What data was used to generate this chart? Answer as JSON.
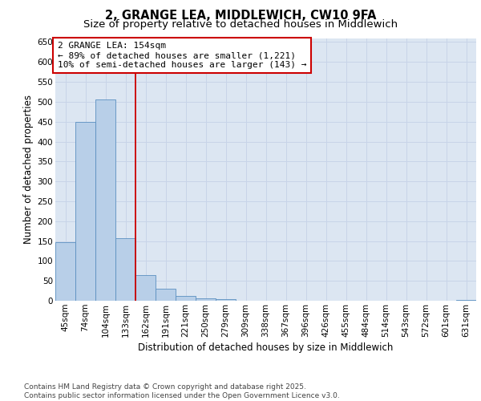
{
  "title_line1": "2, GRANGE LEA, MIDDLEWICH, CW10 9FA",
  "title_line2": "Size of property relative to detached houses in Middlewich",
  "xlabel": "Distribution of detached houses by size in Middlewich",
  "ylabel": "Number of detached properties",
  "categories": [
    "45sqm",
    "74sqm",
    "104sqm",
    "133sqm",
    "162sqm",
    "191sqm",
    "221sqm",
    "250sqm",
    "279sqm",
    "309sqm",
    "338sqm",
    "367sqm",
    "396sqm",
    "426sqm",
    "455sqm",
    "484sqm",
    "514sqm",
    "543sqm",
    "572sqm",
    "601sqm",
    "631sqm"
  ],
  "values": [
    148,
    450,
    505,
    158,
    65,
    30,
    12,
    7,
    5,
    0,
    0,
    0,
    0,
    0,
    0,
    0,
    0,
    0,
    0,
    0,
    2
  ],
  "bar_color": "#b8cfe8",
  "bar_edge_color": "#5a8fc0",
  "vline_x_index": 3.5,
  "vline_color": "#cc0000",
  "annotation_line1": "2 GRANGE LEA: 154sqm",
  "annotation_line2": "← 89% of detached houses are smaller (1,221)",
  "annotation_line3": "10% of semi-detached houses are larger (143) →",
  "annotation_box_color": "#cc0000",
  "ylim": [
    0,
    660
  ],
  "yticks": [
    0,
    50,
    100,
    150,
    200,
    250,
    300,
    350,
    400,
    450,
    500,
    550,
    600,
    650
  ],
  "grid_color": "#c8d4e8",
  "bg_color": "#dce6f2",
  "footer_text": "Contains HM Land Registry data © Crown copyright and database right 2025.\nContains public sector information licensed under the Open Government Licence v3.0.",
  "title_fontsize": 10.5,
  "subtitle_fontsize": 9.5,
  "axis_label_fontsize": 8.5,
  "tick_fontsize": 7.5,
  "annotation_fontsize": 8,
  "footer_fontsize": 6.5
}
